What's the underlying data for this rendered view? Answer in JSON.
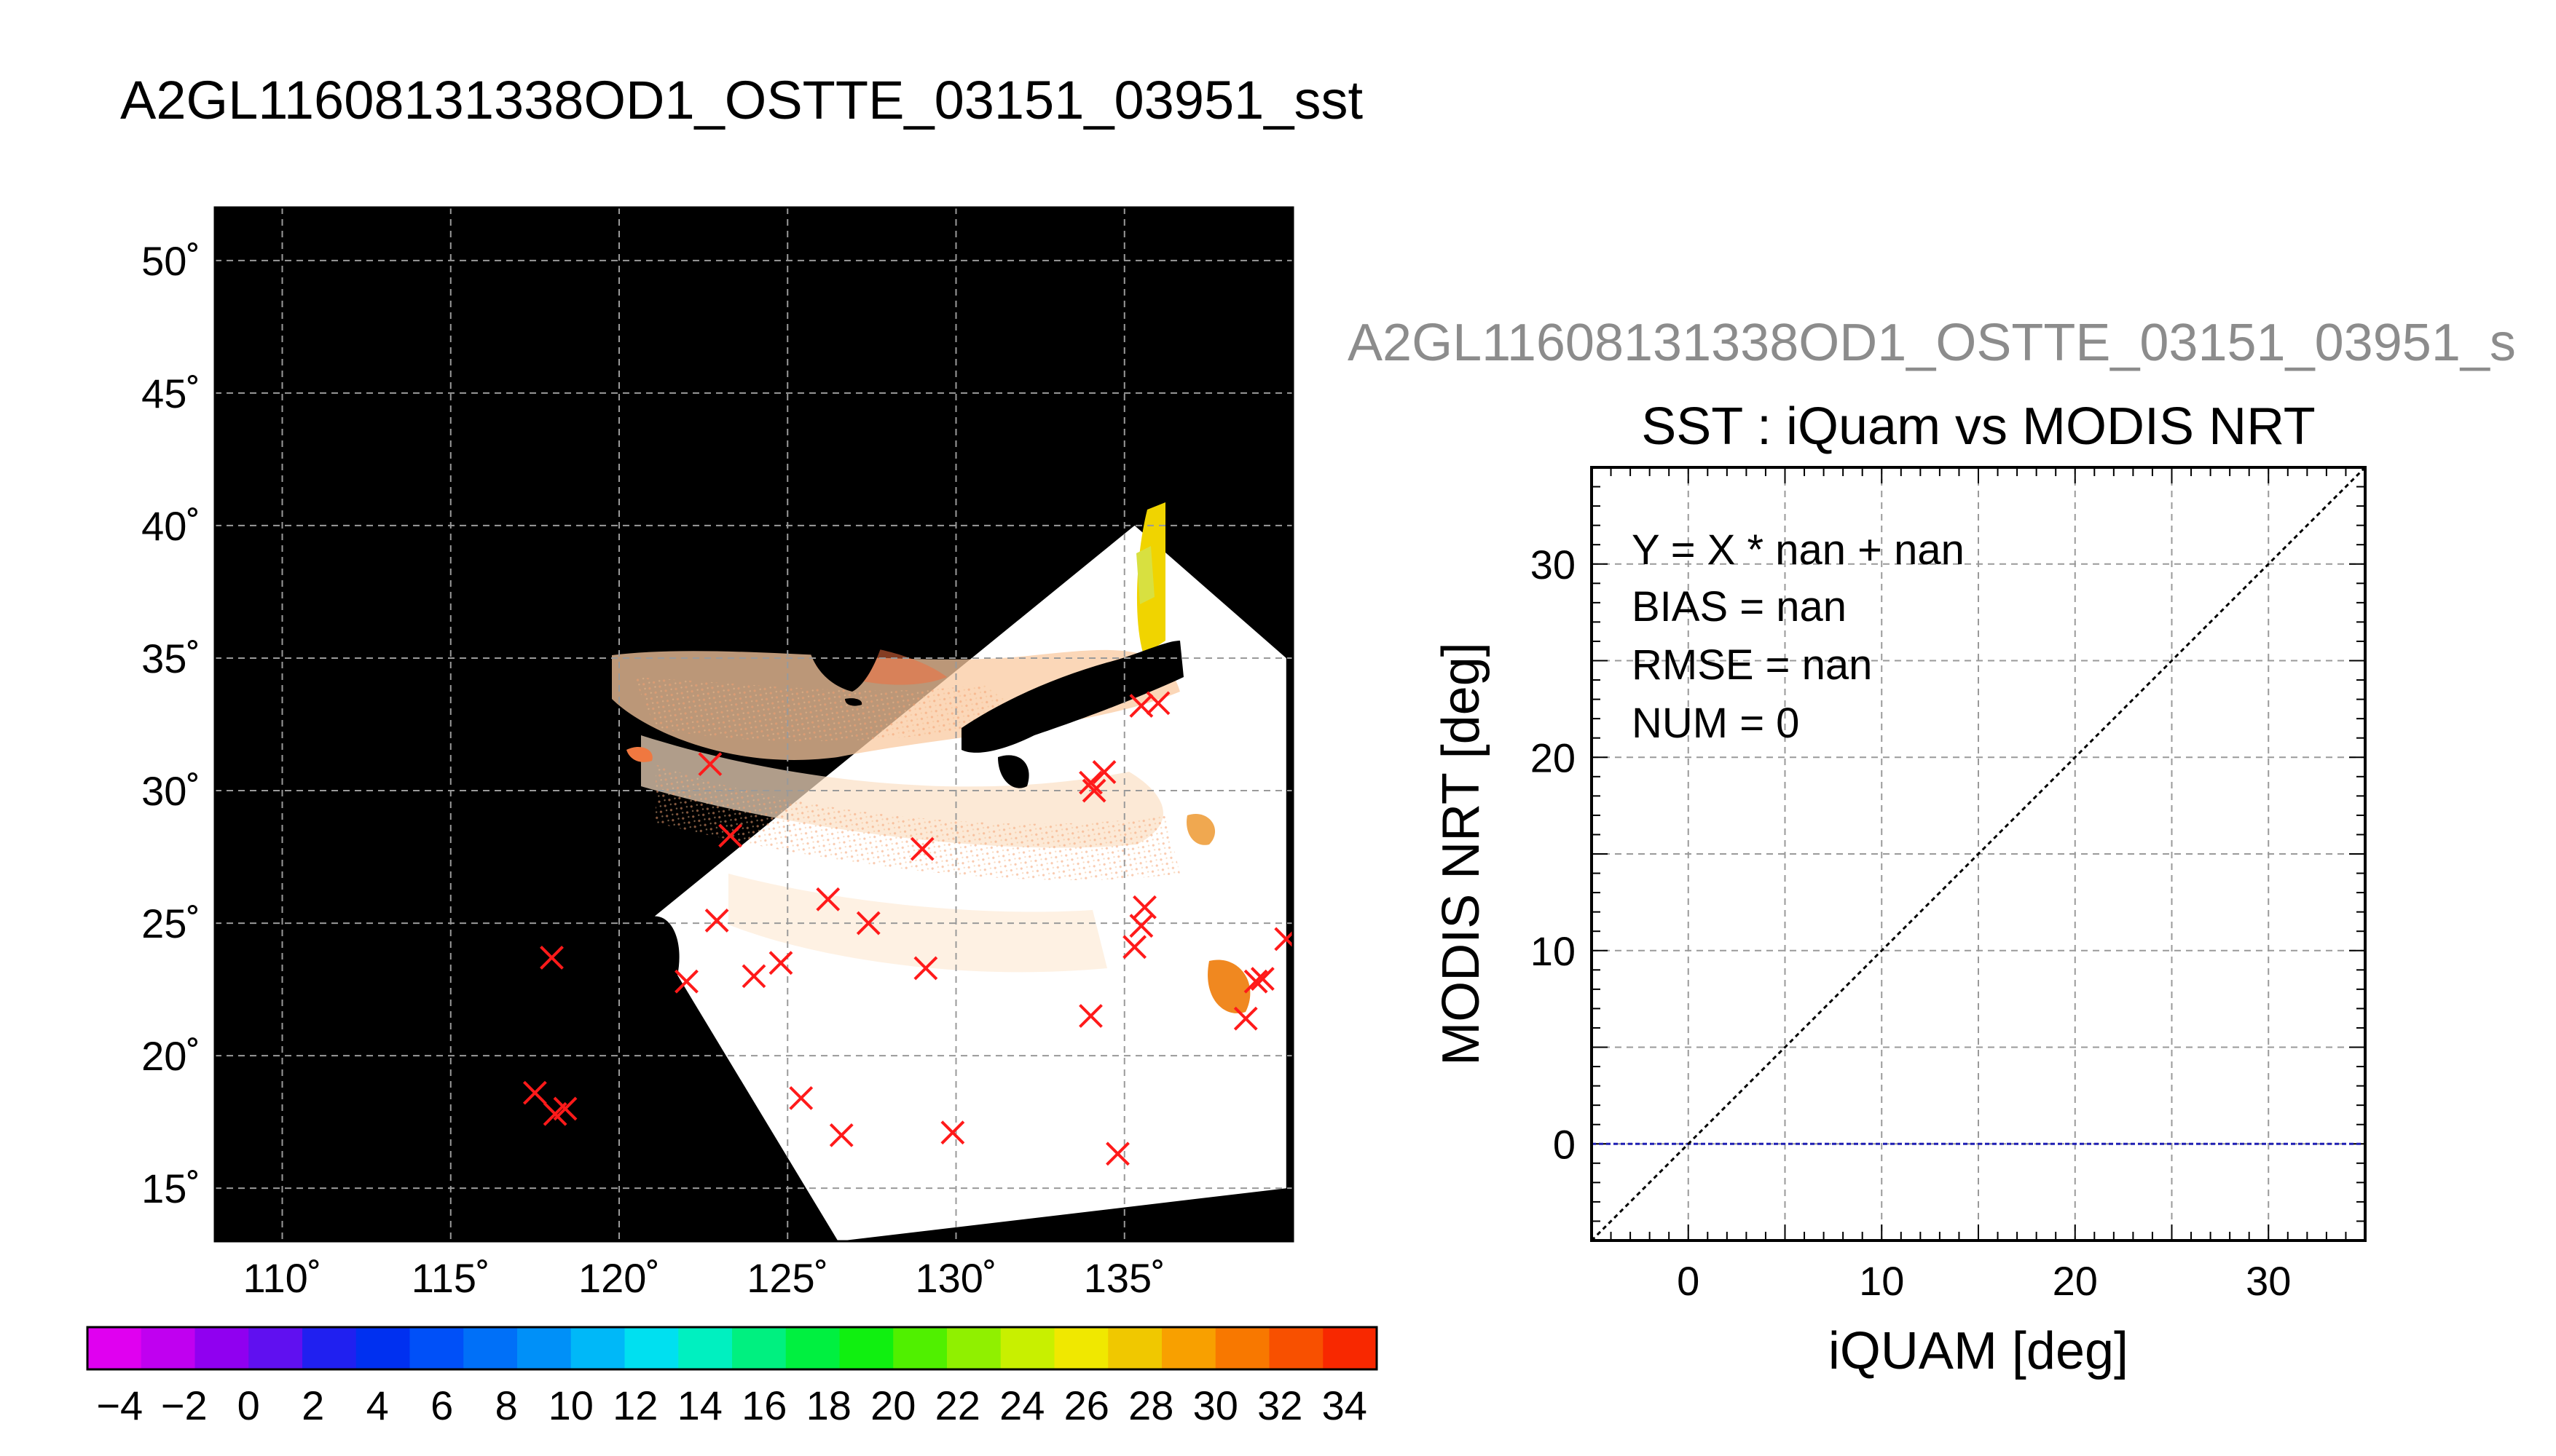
{
  "figure": {
    "title": "A2GL11608131338OD1_OSTTE_03151_03951_sst",
    "secondary_title": "A2GL11608131338OD1_OSTTE_03151_03951_s"
  },
  "colors": {
    "land": "#000000",
    "grid": "#9a9a9a",
    "marker": "#ff1a1a",
    "identity_line": "#000000",
    "zero_line": "#1e1eb4"
  },
  "chart_data": [
    {
      "type": "heatmap",
      "title": "",
      "xlabel": "",
      "ylabel": "",
      "xlim": [
        108,
        140
      ],
      "ylim": [
        13,
        52
      ],
      "x_ticks": [
        110,
        115,
        120,
        125,
        130,
        135
      ],
      "y_ticks": [
        15,
        20,
        25,
        30,
        35,
        40,
        45,
        50
      ],
      "x_tick_labels": [
        "110˚",
        "115˚",
        "120˚",
        "125˚",
        "130˚",
        "135˚"
      ],
      "y_tick_labels": [
        "15˚",
        "20˚",
        "25˚",
        "30˚",
        "35˚",
        "40˚",
        "45˚",
        "50˚"
      ],
      "grid": true,
      "swath_corners": [
        [
          120.8,
          25.0
        ],
        [
          135.3,
          40.0
        ],
        [
          139.8,
          35.0
        ],
        [
          139.8,
          15.0
        ],
        [
          126.5,
          13.0
        ]
      ],
      "match_points": [
        [
          117.5,
          18.6
        ],
        [
          118.1,
          17.8
        ],
        [
          118.4,
          18.0
        ],
        [
          118.0,
          23.7
        ],
        [
          122.0,
          22.8
        ],
        [
          122.7,
          31.0
        ],
        [
          123.3,
          28.3
        ],
        [
          122.9,
          25.1
        ],
        [
          124.0,
          23.0
        ],
        [
          124.8,
          23.5
        ],
        [
          125.4,
          18.4
        ],
        [
          126.2,
          25.9
        ],
        [
          126.6,
          17.0
        ],
        [
          127.4,
          25.0
        ],
        [
          129.0,
          27.8
        ],
        [
          129.1,
          23.3
        ],
        [
          129.9,
          17.1
        ],
        [
          134.0,
          30.3
        ],
        [
          134.4,
          30.7
        ],
        [
          134.1,
          30.0
        ],
        [
          134.0,
          21.5
        ],
        [
          134.8,
          16.3
        ],
        [
          135.3,
          24.1
        ],
        [
          135.5,
          24.9
        ],
        [
          135.6,
          25.6
        ],
        [
          135.5,
          33.2
        ],
        [
          136.0,
          33.3
        ],
        [
          138.6,
          21.4
        ],
        [
          138.9,
          22.8
        ],
        [
          139.1,
          22.9
        ],
        [
          139.8,
          24.4
        ]
      ]
    },
    {
      "type": "scatter",
      "title": "SST : iQuam vs MODIS NRT",
      "xlabel": "iQUAM [deg]",
      "ylabel": "MODIS NRT [deg]",
      "xlim": [
        -5,
        35
      ],
      "ylim": [
        -5,
        35
      ],
      "x_ticks": [
        0,
        10,
        20,
        30
      ],
      "y_ticks": [
        0,
        10,
        20,
        30
      ],
      "grid": true,
      "points": [],
      "reference_lines": [
        {
          "kind": "identity",
          "y_equals_x": true
        },
        {
          "kind": "horizontal",
          "y": 0
        }
      ],
      "stats": {
        "fit": "Y = X * nan + nan",
        "bias": "BIAS = nan",
        "rmse": "RMSE = nan",
        "num": "NUM = 0"
      }
    }
  ],
  "colorbar": {
    "min": -5,
    "max": 35,
    "tick_labels": [
      "−4",
      "−2",
      "0",
      "2",
      "4",
      "6",
      "8",
      "10",
      "12",
      "14",
      "16",
      "18",
      "20",
      "22",
      "24",
      "26",
      "28",
      "30",
      "32",
      "34"
    ],
    "colors": [
      "#e000f0",
      "#c000f0",
      "#9000f0",
      "#6010f0",
      "#2020f0",
      "#0030f0",
      "#0050f8",
      "#0070f8",
      "#0090f8",
      "#00b8f8",
      "#00e0f0",
      "#00f0c0",
      "#00f080",
      "#00f040",
      "#10f010",
      "#50f000",
      "#90f000",
      "#c8f000",
      "#f0e800",
      "#f0c800",
      "#f8a000",
      "#f87800",
      "#f85000",
      "#f82800"
    ]
  }
}
